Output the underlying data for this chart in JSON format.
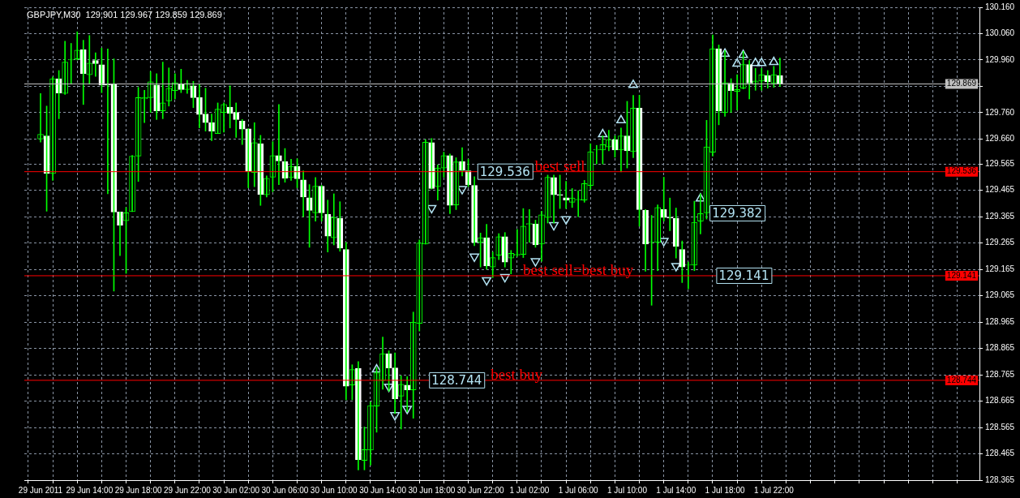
{
  "chart_data": {
    "type": "candlestick",
    "title": "GBPJPY,M30  129.901 129.967 129.859 129.869",
    "categories": [
      "29 Jun 2011",
      null,
      null,
      null,
      null,
      null,
      null,
      null,
      "29 Jun 14:00",
      null,
      null,
      null,
      null,
      null,
      null,
      null,
      "29 Jun 18:00",
      null,
      null,
      null,
      null,
      null,
      null,
      null,
      "29 Jun 22:00",
      null,
      null,
      null,
      null,
      null,
      null,
      null,
      "30 Jun 02:00",
      null,
      null,
      null,
      null,
      null,
      null,
      null,
      "30 Jun 06:00",
      null,
      null,
      null,
      null,
      null,
      null,
      null,
      "30 Jun 10:00",
      null,
      null,
      null,
      null,
      null,
      null,
      null,
      "30 Jun 14:00",
      null,
      null,
      null,
      null,
      null,
      null,
      null,
      "30 Jun 18:00",
      null,
      null,
      null,
      null,
      null,
      null,
      null,
      "30 Jun 22:00",
      null,
      null,
      null,
      null,
      null,
      null,
      null,
      "1 Jul 02:00",
      null,
      null,
      null,
      null,
      null,
      null,
      null,
      "1 Jul 06:00",
      null,
      null,
      null,
      null,
      null,
      null,
      null,
      "1 Jul 10:00",
      null,
      null,
      null,
      null,
      null,
      null,
      null,
      "1 Jul 14:00",
      null,
      null,
      null,
      null,
      null,
      null,
      null,
      "1 Jul 18:00",
      null,
      null,
      null,
      null,
      null,
      null,
      null,
      "1 Jul 22:00",
      null,
      null,
      null,
      null,
      null,
      null,
      null,
      null,
      null,
      null,
      null,
      null,
      null,
      null,
      null,
      null,
      null,
      null,
      null,
      null,
      null,
      null,
      null,
      null,
      null,
      null,
      null,
      null,
      null,
      null,
      null
    ],
    "ohlc": [
      [
        129.66,
        129.833,
        129.648,
        129.678
      ],
      [
        129.672,
        129.785,
        129.386,
        129.529
      ],
      [
        129.529,
        129.896,
        129.503,
        129.889
      ],
      [
        129.889,
        129.92,
        129.737,
        129.835
      ],
      [
        129.833,
        130.031,
        129.829,
        129.952
      ],
      [
        129.96,
        130.023,
        129.868,
        129.96
      ],
      [
        129.964,
        130.067,
        129.96,
        129.997
      ],
      [
        129.999,
        130.035,
        129.791,
        129.908
      ],
      [
        129.904,
        130.053,
        129.868,
        129.948
      ],
      [
        129.958,
        129.987,
        129.898,
        129.946
      ],
      [
        129.942,
        130.005,
        129.836,
        129.865
      ],
      [
        129.868,
        130.002,
        129.452,
        129.865
      ],
      [
        129.868,
        129.964,
        129.083,
        129.383
      ],
      [
        129.383,
        129.383,
        129.217,
        129.333
      ],
      [
        129.35,
        129.4,
        129.15,
        129.38
      ],
      [
        129.384,
        129.598,
        129.384,
        129.595
      ],
      [
        129.595,
        129.856,
        129.499,
        129.817
      ],
      [
        129.812,
        129.845,
        129.722,
        129.818
      ],
      [
        129.817,
        129.916,
        129.761,
        129.877
      ],
      [
        129.865,
        129.908,
        129.734,
        129.767
      ],
      [
        129.767,
        129.952,
        129.737,
        129.797
      ],
      [
        129.805,
        129.93,
        129.785,
        129.853
      ],
      [
        129.844,
        129.908,
        129.812,
        129.874
      ],
      [
        129.868,
        129.925,
        129.836,
        129.848
      ],
      [
        129.848,
        129.883,
        129.833,
        129.871
      ],
      [
        129.862,
        129.879,
        129.779,
        129.817
      ],
      [
        129.817,
        129.868,
        129.702,
        129.753
      ],
      [
        129.755,
        129.853,
        129.69,
        129.722
      ],
      [
        129.722,
        129.755,
        129.654,
        129.69
      ],
      [
        129.681,
        129.797,
        129.681,
        129.773
      ],
      [
        129.761,
        129.797,
        129.686,
        129.791
      ],
      [
        129.781,
        129.862,
        129.702,
        129.758
      ],
      [
        129.761,
        129.797,
        129.666,
        129.734
      ],
      [
        129.728,
        129.734,
        129.639,
        129.698
      ],
      [
        129.699,
        129.699,
        129.475,
        129.537
      ],
      [
        129.533,
        129.722,
        129.479,
        129.646
      ],
      [
        129.642,
        129.674,
        129.408,
        129.449
      ],
      [
        129.448,
        129.52,
        129.44,
        129.511
      ],
      [
        129.515,
        129.65,
        129.46,
        129.597
      ],
      [
        129.597,
        129.791,
        129.487,
        129.577
      ],
      [
        129.574,
        129.624,
        129.496,
        129.511
      ],
      [
        129.514,
        129.583,
        129.503,
        129.556
      ],
      [
        129.556,
        129.585,
        129.475,
        129.509
      ],
      [
        129.505,
        129.539,
        129.365,
        129.44
      ],
      [
        129.437,
        129.487,
        129.249,
        129.389
      ],
      [
        129.38,
        129.514,
        129.348,
        129.481
      ],
      [
        129.481,
        129.484,
        129.348,
        129.38
      ],
      [
        129.374,
        129.428,
        129.231,
        129.291
      ],
      [
        129.285,
        129.452,
        129.258,
        129.362
      ],
      [
        129.359,
        129.422,
        129.234,
        129.246
      ],
      [
        129.241,
        129.267,
        128.67,
        128.722
      ],
      [
        128.726,
        128.803,
        128.67,
        128.785
      ],
      [
        128.789,
        128.815,
        128.404,
        128.443
      ],
      [
        128.44,
        128.567,
        128.404,
        128.481
      ],
      [
        128.479,
        128.662,
        128.422,
        128.648
      ],
      [
        128.646,
        128.793,
        128.547,
        128.773
      ],
      [
        128.743,
        128.908,
        128.71,
        128.845
      ],
      [
        128.845,
        128.856,
        128.702,
        128.791
      ],
      [
        128.791,
        128.848,
        128.618,
        128.674
      ],
      [
        128.684,
        128.761,
        128.559,
        128.729
      ],
      [
        128.726,
        128.758,
        128.624,
        128.708
      ],
      [
        128.708,
        129.003,
        128.6,
        128.964
      ],
      [
        128.96,
        129.277,
        128.931,
        129.265
      ],
      [
        129.261,
        129.658,
        129.261,
        129.648
      ],
      [
        129.646,
        129.662,
        129.47,
        129.472
      ],
      [
        129.479,
        129.562,
        129.428,
        129.55
      ],
      [
        129.55,
        129.61,
        129.515,
        129.597
      ],
      [
        129.597,
        129.603,
        129.377,
        129.408
      ],
      [
        129.41,
        129.589,
        129.392,
        129.573
      ],
      [
        129.574,
        129.627,
        129.52,
        129.541
      ],
      [
        129.539,
        129.583,
        129.479,
        129.487
      ],
      [
        129.484,
        129.517,
        129.255,
        129.267
      ],
      [
        129.267,
        129.303,
        129.174,
        129.285
      ],
      [
        129.285,
        129.336,
        129.166,
        129.178
      ],
      [
        129.174,
        129.231,
        129.134,
        129.21
      ],
      [
        129.219,
        129.301,
        129.202,
        129.289
      ],
      [
        129.289,
        129.305,
        129.174,
        129.193
      ],
      [
        129.208,
        129.237,
        129.148,
        129.226
      ],
      [
        129.219,
        129.317,
        129.214,
        129.222
      ],
      [
        129.222,
        129.396,
        129.21,
        129.329
      ],
      [
        129.336,
        129.392,
        129.267,
        129.338
      ],
      [
        129.338,
        129.352,
        129.249,
        129.258
      ],
      [
        129.261,
        129.386,
        129.196,
        129.372
      ],
      [
        129.362,
        129.523,
        129.341,
        129.515
      ],
      [
        129.514,
        129.523,
        129.341,
        129.448
      ],
      [
        129.448,
        129.523,
        129.396,
        129.446
      ],
      [
        129.437,
        129.499,
        129.396,
        129.428
      ],
      [
        129.42,
        129.472,
        129.4,
        129.436
      ],
      [
        129.428,
        129.464,
        129.365,
        129.43
      ],
      [
        129.428,
        129.503,
        129.42,
        129.491
      ],
      [
        129.484,
        129.642,
        129.47,
        129.612
      ],
      [
        129.618,
        129.636,
        129.565,
        129.62
      ],
      [
        129.618,
        129.672,
        129.565,
        129.639
      ],
      [
        129.63,
        129.693,
        129.615,
        129.658
      ],
      [
        129.658,
        129.672,
        129.591,
        129.618
      ],
      [
        129.618,
        129.702,
        129.535,
        129.672
      ],
      [
        129.672,
        129.803,
        129.55,
        129.615
      ],
      [
        129.612,
        129.826,
        129.589,
        129.777
      ],
      [
        129.777,
        129.826,
        129.329,
        129.392
      ],
      [
        129.389,
        129.392,
        129.158,
        129.261
      ],
      [
        129.267,
        129.37,
        129.029,
        129.268
      ],
      [
        129.267,
        129.41,
        129.16,
        129.4
      ],
      [
        129.392,
        129.515,
        129.348,
        129.362
      ],
      [
        129.362,
        129.436,
        129.312,
        129.36
      ],
      [
        129.359,
        129.398,
        129.208,
        129.253
      ],
      [
        129.241,
        129.273,
        129.115,
        129.174
      ],
      [
        129.181,
        129.193,
        129.091,
        129.183
      ],
      [
        129.181,
        129.424,
        129.16,
        129.344
      ],
      [
        129.348,
        129.452,
        129.3,
        129.377
      ],
      [
        129.38,
        129.731,
        129.356,
        129.63
      ],
      [
        129.61,
        130.055,
        129.595,
        130.003
      ],
      [
        130.003,
        130.017,
        129.714,
        129.767
      ],
      [
        129.761,
        129.996,
        129.746,
        129.874
      ],
      [
        129.872,
        129.889,
        129.761,
        129.844
      ],
      [
        129.841,
        129.904,
        129.77,
        129.848
      ],
      [
        129.853,
        129.993,
        129.85,
        129.943
      ],
      [
        129.943,
        129.958,
        129.812,
        129.872
      ],
      [
        129.868,
        129.928,
        129.845,
        129.88
      ],
      [
        129.88,
        129.928,
        129.845,
        129.904
      ],
      [
        129.901,
        129.92,
        129.853,
        129.877
      ],
      [
        129.872,
        129.936,
        129.856,
        129.904
      ],
      [
        129.901,
        129.967,
        129.859,
        129.869
      ],
      null,
      null,
      null,
      null,
      null,
      null,
      null,
      null,
      null,
      null,
      null,
      null,
      null,
      null,
      null,
      null,
      null,
      null,
      null,
      null,
      null,
      null,
      null,
      null,
      null,
      null,
      null,
      null,
      null,
      null
    ],
    "series": [
      {
        "type": "scatter",
        "color": "#b4e4f4",
        "marker": "triangle",
        "values": [
          null,
          null,
          null,
          null,
          null,
          null,
          null,
          null,
          null,
          null,
          null,
          null,
          null,
          null,
          null,
          null,
          null,
          null,
          null,
          null,
          null,
          null,
          null,
          null,
          null,
          null,
          null,
          null,
          null,
          null,
          null,
          null,
          null,
          null,
          null,
          null,
          null,
          null,
          null,
          null,
          null,
          null,
          null,
          null,
          null,
          null,
          null,
          null,
          null,
          null,
          null,
          null,
          null,
          null,
          null,
          128.785,
          null,
          128.72,
          128.612,
          null,
          128.636,
          null,
          null,
          null,
          129.398,
          null,
          null,
          null,
          null,
          129.47,
          null,
          129.214,
          null,
          129.124,
          null,
          null,
          129.136,
          null,
          null,
          null,
          null,
          129.196,
          null,
          null,
          129.333,
          null,
          129.356,
          null,
          null,
          null,
          null,
          null,
          129.678,
          null,
          null,
          129.731,
          null,
          129.865,
          null,
          null,
          null,
          null,
          129.273,
          null,
          129.178,
          null,
          null,
          null,
          129.434,
          null,
          null,
          null,
          129.984,
          null,
          129.946,
          129.979,
          null,
          129.948,
          129.948,
          null,
          129.952,
          null,
          null,
          null,
          null,
          null,
          null,
          null,
          null,
          null,
          null,
          null,
          null,
          null,
          null,
          null,
          null,
          null,
          null,
          null,
          null,
          null,
          null,
          null,
          null,
          null,
          null,
          null,
          null,
          null,
          null,
          null
        ]
      }
    ],
    "ylim": [
      128.365,
      130.16
    ],
    "yticks": [
      {
        "value": 130.16,
        "label": "130.160"
      },
      {
        "value": 130.06,
        "label": "130.060"
      },
      {
        "value": 129.96,
        "label": "129.960"
      },
      {
        "value": 129.86,
        "label": null
      },
      {
        "value": 129.76,
        "label": "129.760"
      },
      {
        "value": 129.66,
        "label": "129.660"
      },
      129.565,
      129.465,
      129.365,
      129.265,
      129.165,
      129.065,
      128.965,
      128.865,
      128.765,
      128.665,
      128.565,
      128.465,
      128.365
    ],
    "grid": true,
    "ref_lines": [
      {
        "axis": "y",
        "value": 129.869,
        "label": "129.869",
        "color": "#c0c0c0"
      },
      {
        "axis": "y",
        "value": 129.536,
        "label": "129.536",
        "color": "#ff0000"
      },
      {
        "axis": "y",
        "value": 129.141,
        "label": "129.141",
        "color": "#ff0000"
      },
      {
        "axis": "y",
        "value": 128.744,
        "label": "128.744",
        "color": "#ff0000"
      }
    ],
    "annotations": [
      {
        "text": "129.536",
        "y": 129.536
      },
      {
        "text": "best sell",
        "y": 129.536
      },
      {
        "text": "best sell=best buy",
        "y": 129.141
      },
      "129.382",
      {
        "text": "129.141",
        "y": 129.141
      },
      {
        "text": "128.744",
        "y": 128.744
      },
      {
        "text": "best buy",
        "y": 128.744
      }
    ]
  }
}
